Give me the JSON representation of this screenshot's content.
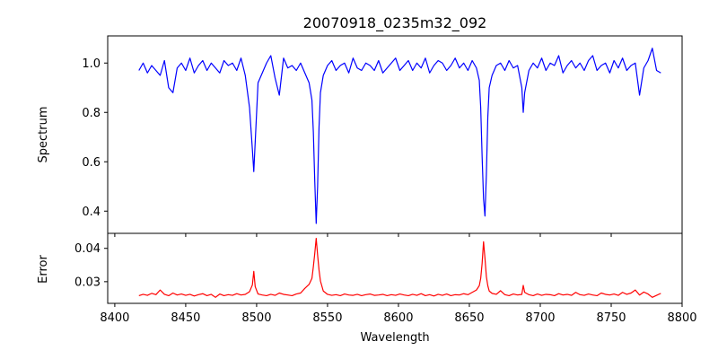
{
  "chart_data": [
    {
      "type": "line",
      "title": "20070918_0235m32_092",
      "xlabel": "",
      "ylabel": "Spectrum",
      "xlim": [
        8395,
        8800
      ],
      "ylim": [
        0.31,
        1.11
      ],
      "xticks": [
        8400,
        8450,
        8500,
        8550,
        8600,
        8650,
        8700,
        8750,
        8800
      ],
      "yticks": [
        0.4,
        0.6,
        0.8,
        1.0
      ],
      "ytick_labels": [
        "0.4",
        "0.6",
        "0.8",
        "1.0"
      ],
      "show_xtick_labels": false,
      "grid": false,
      "color": "#0000ff",
      "series": [
        {
          "x": [
            8417,
            8420,
            8423,
            8426,
            8429,
            8432,
            8435,
            8438,
            8441,
            8444,
            8447,
            8450,
            8453,
            8456,
            8459,
            8462,
            8465,
            8468,
            8471,
            8474,
            8477,
            8480,
            8483,
            8486,
            8489,
            8492,
            8495,
            8497,
            8498,
            8499,
            8501,
            8504,
            8507,
            8510,
            8513,
            8516,
            8519,
            8522,
            8525,
            8528,
            8531,
            8534,
            8537,
            8539,
            8540,
            8541,
            8542,
            8543,
            8544,
            8545,
            8547,
            8550,
            8553,
            8556,
            8559,
            8562,
            8565,
            8568,
            8571,
            8574,
            8577,
            8580,
            8583,
            8586,
            8589,
            8592,
            8595,
            8598,
            8601,
            8604,
            8607,
            8610,
            8613,
            8616,
            8619,
            8622,
            8625,
            8628,
            8631,
            8634,
            8637,
            8640,
            8643,
            8646,
            8649,
            8652,
            8655,
            8657,
            8658,
            8659,
            8660,
            8661,
            8662,
            8663,
            8664,
            8666,
            8669,
            8672,
            8675,
            8678,
            8681,
            8684,
            8687,
            8688,
            8689,
            8692,
            8695,
            8698,
            8701,
            8704,
            8707,
            8710,
            8713,
            8716,
            8719,
            8722,
            8725,
            8728,
            8731,
            8734,
            8737,
            8740,
            8743,
            8746,
            8749,
            8752,
            8755,
            8758,
            8761,
            8764,
            8767,
            8770,
            8773,
            8776,
            8779,
            8782,
            8785
          ],
          "y": [
            0.97,
            1.0,
            0.96,
            0.99,
            0.97,
            0.95,
            1.01,
            0.9,
            0.88,
            0.98,
            1.0,
            0.97,
            1.02,
            0.96,
            0.99,
            1.01,
            0.97,
            1.0,
            0.98,
            0.96,
            1.01,
            0.99,
            1.0,
            0.97,
            1.02,
            0.95,
            0.82,
            0.65,
            0.56,
            0.68,
            0.92,
            0.96,
            1.0,
            1.03,
            0.94,
            0.87,
            1.02,
            0.98,
            0.99,
            0.97,
            1.0,
            0.96,
            0.92,
            0.85,
            0.72,
            0.52,
            0.35,
            0.5,
            0.74,
            0.88,
            0.95,
            0.99,
            1.01,
            0.97,
            0.99,
            1.0,
            0.96,
            1.02,
            0.98,
            0.97,
            1.0,
            0.99,
            0.97,
            1.01,
            0.96,
            0.98,
            1.0,
            1.02,
            0.97,
            0.99,
            1.01,
            0.97,
            1.0,
            0.98,
            1.02,
            0.96,
            0.99,
            1.01,
            1.0,
            0.97,
            0.99,
            1.02,
            0.98,
            1.0,
            0.97,
            1.01,
            0.98,
            0.93,
            0.82,
            0.62,
            0.45,
            0.38,
            0.55,
            0.78,
            0.9,
            0.95,
            0.99,
            1.0,
            0.97,
            1.01,
            0.98,
            0.99,
            0.9,
            0.8,
            0.88,
            0.97,
            1.0,
            0.98,
            1.02,
            0.97,
            1.0,
            0.99,
            1.03,
            0.96,
            0.99,
            1.01,
            0.98,
            1.0,
            0.97,
            1.01,
            1.03,
            0.97,
            0.99,
            1.0,
            0.96,
            1.01,
            0.98,
            1.02,
            0.97,
            0.99,
            1.0,
            0.87,
            0.98,
            1.01,
            1.06,
            0.97,
            0.96
          ]
        }
      ]
    },
    {
      "type": "line",
      "title": "",
      "xlabel": "Wavelength",
      "ylabel": "Error",
      "xlim": [
        8395,
        8800
      ],
      "ylim": [
        0.0235,
        0.0445
      ],
      "xticks": [
        8400,
        8450,
        8500,
        8550,
        8600,
        8650,
        8700,
        8750,
        8800
      ],
      "xtick_labels": [
        "8400",
        "8450",
        "8500",
        "8550",
        "8600",
        "8650",
        "8700",
        "8750",
        "8800"
      ],
      "yticks": [
        0.03,
        0.04
      ],
      "ytick_labels": [
        "0.03",
        "0.04"
      ],
      "show_xtick_labels": true,
      "grid": false,
      "color": "#ff0000",
      "series": [
        {
          "x": [
            8417,
            8420,
            8423,
            8426,
            8429,
            8432,
            8435,
            8438,
            8441,
            8444,
            8447,
            8450,
            8453,
            8456,
            8459,
            8462,
            8465,
            8468,
            8471,
            8474,
            8477,
            8480,
            8483,
            8486,
            8489,
            8492,
            8495,
            8497,
            8498,
            8499,
            8501,
            8504,
            8507,
            8510,
            8513,
            8516,
            8519,
            8522,
            8525,
            8528,
            8531,
            8534,
            8537,
            8539,
            8540,
            8541,
            8542,
            8543,
            8544,
            8545,
            8547,
            8550,
            8553,
            8556,
            8559,
            8562,
            8565,
            8568,
            8571,
            8574,
            8577,
            8580,
            8583,
            8586,
            8589,
            8592,
            8595,
            8598,
            8601,
            8604,
            8607,
            8610,
            8613,
            8616,
            8619,
            8622,
            8625,
            8628,
            8631,
            8634,
            8637,
            8640,
            8643,
            8646,
            8649,
            8652,
            8655,
            8657,
            8658,
            8659,
            8660,
            8661,
            8662,
            8663,
            8664,
            8666,
            8669,
            8672,
            8675,
            8678,
            8681,
            8684,
            8687,
            8688,
            8689,
            8692,
            8695,
            8698,
            8701,
            8704,
            8707,
            8710,
            8713,
            8716,
            8719,
            8722,
            8725,
            8728,
            8731,
            8734,
            8737,
            8740,
            8743,
            8746,
            8749,
            8752,
            8755,
            8758,
            8761,
            8764,
            8767,
            8770,
            8773,
            8776,
            8779,
            8782,
            8785
          ],
          "y": [
            0.0258,
            0.0262,
            0.0259,
            0.0265,
            0.0261,
            0.0275,
            0.0262,
            0.0258,
            0.0266,
            0.026,
            0.0263,
            0.0259,
            0.0262,
            0.0257,
            0.0261,
            0.0264,
            0.0258,
            0.0262,
            0.0253,
            0.0263,
            0.0258,
            0.0261,
            0.0259,
            0.0264,
            0.026,
            0.0262,
            0.027,
            0.029,
            0.0331,
            0.0285,
            0.0263,
            0.026,
            0.0258,
            0.0262,
            0.0259,
            0.0266,
            0.0262,
            0.026,
            0.0258,
            0.0263,
            0.0266,
            0.028,
            0.0292,
            0.031,
            0.0345,
            0.0385,
            0.043,
            0.038,
            0.0335,
            0.0302,
            0.0272,
            0.0262,
            0.0259,
            0.0261,
            0.0258,
            0.0263,
            0.026,
            0.0259,
            0.0262,
            0.0258,
            0.0261,
            0.0263,
            0.0259,
            0.026,
            0.0262,
            0.0258,
            0.0261,
            0.0259,
            0.0263,
            0.026,
            0.0258,
            0.0262,
            0.0259,
            0.0264,
            0.0258,
            0.0261,
            0.0257,
            0.0262,
            0.0259,
            0.0263,
            0.0258,
            0.0261,
            0.026,
            0.0264,
            0.0261,
            0.0268,
            0.0275,
            0.0288,
            0.031,
            0.0355,
            0.042,
            0.037,
            0.0315,
            0.0288,
            0.0272,
            0.0265,
            0.0262,
            0.0273,
            0.0261,
            0.0258,
            0.0263,
            0.026,
            0.0262,
            0.0289,
            0.0268,
            0.0261,
            0.0258,
            0.0263,
            0.0259,
            0.0262,
            0.0261,
            0.0258,
            0.0264,
            0.026,
            0.0262,
            0.0259,
            0.0268,
            0.0261,
            0.0259,
            0.0263,
            0.026,
            0.0258,
            0.0266,
            0.0262,
            0.026,
            0.0263,
            0.0259,
            0.0268,
            0.0262,
            0.0266,
            0.0275,
            0.026,
            0.0269,
            0.0263,
            0.0253,
            0.0259,
            0.0265
          ]
        }
      ]
    }
  ]
}
